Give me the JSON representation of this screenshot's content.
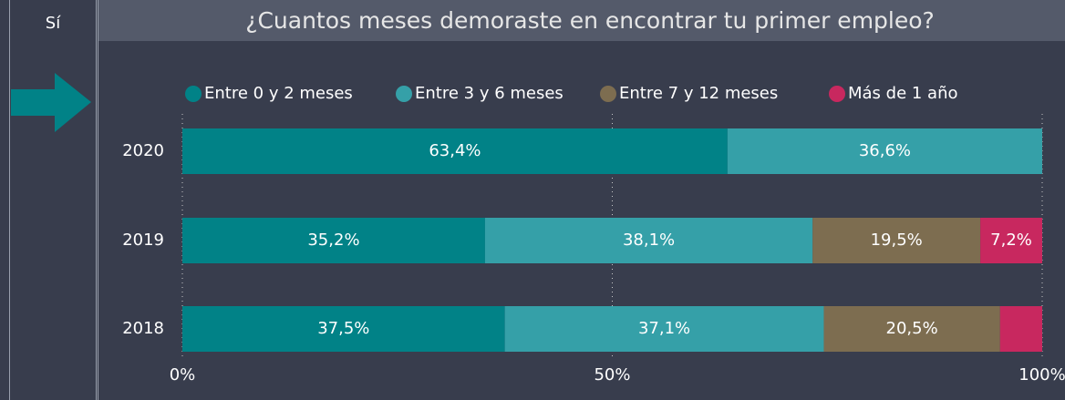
{
  "side_panel": {
    "label": "Sí"
  },
  "chart_data": {
    "type": "stacked_bar_horizontal",
    "title": "¿Cuantos meses demoraste en encontrar tu primer empleo?",
    "categories": [
      "2020",
      "2019",
      "2018"
    ],
    "series": [
      {
        "name": "Entre 0 y 2 meses",
        "color": "#018287",
        "values": [
          63.4,
          35.2,
          37.5
        ],
        "value_labels": [
          "63,4%",
          "35,2%",
          "37,5%"
        ]
      },
      {
        "name": "Entre 3 y 6 meses",
        "color": "#35a0a8",
        "values": [
          36.6,
          38.1,
          37.1
        ],
        "value_labels": [
          "36,6%",
          "38,1%",
          "37,1%"
        ]
      },
      {
        "name": "Entre 7 y 12 meses",
        "color": "#7d6d50",
        "values": [
          0,
          19.5,
          20.5
        ],
        "value_labels": [
          null,
          "19,5%",
          "20,5%"
        ]
      },
      {
        "name": "Más de 1 año",
        "color": "#c8285f",
        "values": [
          0,
          7.2,
          4.9
        ],
        "value_labels": [
          null,
          "7,2%",
          null
        ]
      }
    ],
    "xlim": [
      0,
      100
    ],
    "xticks": [
      {
        "value": 0,
        "label": "0%"
      },
      {
        "value": 50,
        "label": "50%"
      },
      {
        "value": 100,
        "label": "100%"
      }
    ],
    "grid": true,
    "legend": "top"
  }
}
